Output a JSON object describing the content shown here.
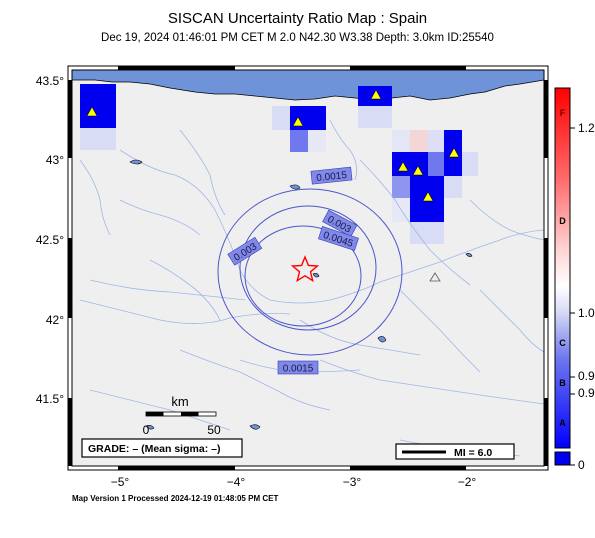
{
  "title": "SISCAN Uncertainty Ratio Map : Spain",
  "subtitle": "Dec 19, 2024 01:46:01 PM CET   M 2.0   N42.30 W3.38   Depth: 3.0km   ID:25540",
  "footer": "Map Version 1 Processed 2024-12-19 01:48:05 PM CET",
  "lat_labels": [
    "43.5°",
    "43°",
    "42.5°",
    "42°",
    "41.5°"
  ],
  "lon_labels": [
    "−5°",
    "−4°",
    "−3°",
    "−2°"
  ],
  "contour_labels": [
    "0.0015",
    "0.003",
    "0.0045",
    "0.003",
    "0.0015"
  ],
  "scale": {
    "title": "km",
    "start": "0",
    "end": "50"
  },
  "grade_text": "GRADE: – (Mean sigma: –)",
  "mi_text": "MI = 6.0",
  "colorbar": {
    "letters": [
      "F",
      "D",
      "C",
      "B",
      "A"
    ],
    "values": [
      "1.2",
      "1.0",
      "0.9",
      "0.9",
      "0"
    ]
  },
  "colors": {
    "sea": "#6f93d8",
    "land": "#efefef",
    "cell_dark": "#0000ee",
    "epicenter": "#ff0000",
    "contour": "#4a55cc",
    "river": "#9fb7e8"
  }
}
